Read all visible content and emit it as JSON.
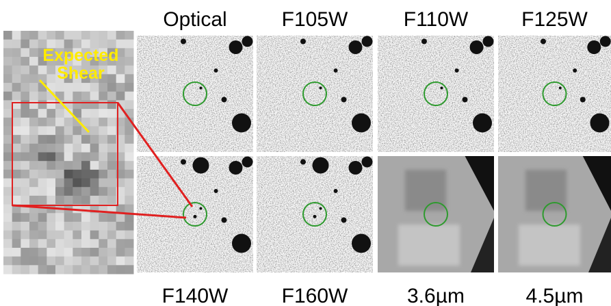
{
  "annotation": {
    "lines": [
      "Expected",
      "Shear"
    ]
  },
  "panels": [
    {
      "label": "Optical"
    },
    {
      "label": "F105W"
    },
    {
      "label": "F110W"
    },
    {
      "label": "F125W"
    },
    {
      "label": "F140W"
    },
    {
      "label": "F160W"
    },
    {
      "label": "3.6µm"
    },
    {
      "label": "4.5µm"
    }
  ]
}
